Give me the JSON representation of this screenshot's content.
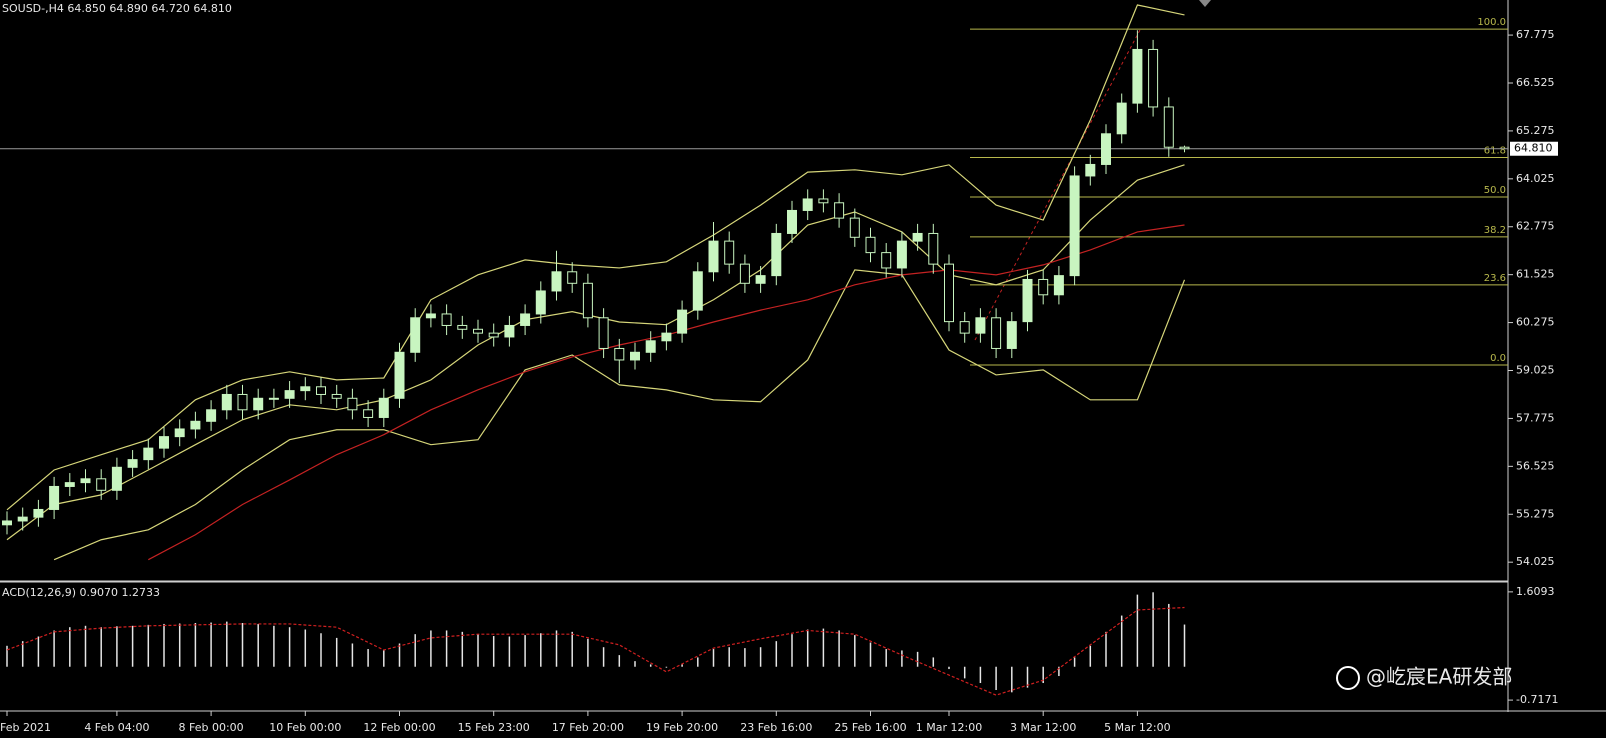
{
  "chart_data": [
    {
      "type": "candlestick",
      "title": "SOUSD-,H4  64.850 64.890 64.720 64.810",
      "categories": [
        "Feb 2021",
        null,
        null,
        null,
        null,
        null,
        null,
        "4 Feb 04:00",
        null,
        null,
        null,
        null,
        null,
        "8 Feb 00:00",
        null,
        null,
        null,
        null,
        null,
        "10 Feb 00:00",
        null,
        null,
        null,
        null,
        null,
        "12 Feb 00:00",
        null,
        null,
        null,
        null,
        null,
        "15 Feb 23:00",
        null,
        null,
        null,
        null,
        null,
        "17 Feb 20:00",
        null,
        null,
        null,
        null,
        null,
        "19 Feb 20:00",
        null,
        null,
        null,
        null,
        null,
        "23 Feb 16:00",
        null,
        null,
        null,
        null,
        null,
        "25 Feb 16:00",
        null,
        null,
        null,
        null,
        "1 Mar 12:00",
        null,
        null,
        null,
        null,
        null,
        "3 Mar 12:00",
        null,
        null,
        null,
        null,
        null,
        "5 Mar 12:00",
        null,
        null,
        null
      ],
      "open": [
        55.0,
        55.1,
        55.2,
        55.4,
        56.0,
        56.1,
        56.2,
        55.9,
        56.5,
        56.7,
        57.0,
        57.3,
        57.5,
        57.7,
        58.0,
        58.4,
        58.0,
        58.3,
        58.3,
        58.5,
        58.6,
        58.4,
        58.3,
        58.0,
        57.8,
        58.3,
        59.5,
        60.4,
        60.5,
        60.2,
        60.1,
        60.0,
        59.9,
        60.2,
        60.5,
        61.1,
        61.6,
        61.3,
        60.4,
        59.6,
        59.3,
        59.5,
        59.8,
        60.0,
        60.6,
        61.6,
        62.4,
        61.8,
        61.3,
        61.5,
        62.6,
        63.2,
        63.5,
        63.4,
        63.0,
        62.5,
        62.1,
        61.7,
        62.4,
        62.6,
        61.8,
        60.3,
        60.0,
        60.4,
        59.6,
        60.3,
        61.4,
        61.0,
        61.5,
        64.1,
        64.4,
        65.2,
        66.0,
        67.4,
        65.9,
        64.85
      ],
      "high": [
        55.35,
        55.45,
        55.65,
        56.25,
        56.35,
        56.45,
        56.45,
        56.75,
        56.95,
        57.25,
        57.55,
        57.75,
        57.95,
        58.25,
        58.65,
        58.65,
        58.55,
        58.55,
        58.75,
        58.85,
        58.85,
        58.65,
        58.55,
        58.25,
        58.55,
        59.75,
        60.65,
        60.75,
        60.75,
        60.45,
        60.35,
        60.25,
        60.45,
        60.75,
        61.35,
        62.15,
        61.85,
        61.55,
        60.65,
        59.85,
        59.75,
        60.05,
        60.25,
        60.85,
        61.85,
        62.9,
        62.65,
        62.05,
        61.75,
        62.85,
        63.45,
        63.75,
        63.75,
        63.65,
        63.25,
        62.75,
        62.35,
        62.65,
        62.85,
        62.85,
        62.05,
        60.55,
        60.65,
        60.65,
        60.55,
        61.65,
        61.65,
        61.75,
        64.35,
        64.65,
        65.45,
        66.25,
        67.9,
        67.65,
        66.15,
        64.89
      ],
      "low": [
        54.75,
        54.85,
        54.95,
        55.15,
        55.75,
        55.85,
        55.65,
        55.65,
        56.25,
        56.45,
        56.75,
        57.05,
        57.25,
        57.45,
        57.75,
        57.75,
        57.75,
        58.05,
        58.05,
        58.25,
        58.15,
        58.05,
        57.75,
        57.55,
        57.55,
        58.05,
        59.25,
        60.15,
        59.95,
        59.85,
        59.75,
        59.65,
        59.65,
        59.95,
        60.25,
        60.85,
        61.05,
        60.15,
        59.35,
        58.7,
        59.05,
        59.25,
        59.55,
        59.75,
        60.35,
        61.35,
        61.55,
        61.05,
        61.05,
        61.25,
        62.35,
        62.95,
        63.15,
        62.75,
        62.25,
        61.85,
        61.45,
        61.45,
        62.15,
        61.55,
        60.05,
        59.75,
        59.75,
        59.35,
        59.35,
        60.05,
        60.75,
        60.75,
        61.25,
        63.85,
        64.15,
        64.95,
        65.75,
        65.65,
        64.6,
        64.72
      ],
      "close": [
        55.1,
        55.2,
        55.4,
        56.0,
        56.1,
        56.2,
        55.9,
        56.5,
        56.7,
        57.0,
        57.3,
        57.5,
        57.7,
        58.0,
        58.4,
        58.0,
        58.3,
        58.3,
        58.5,
        58.6,
        58.4,
        58.3,
        58.0,
        57.8,
        58.3,
        59.5,
        60.4,
        60.5,
        60.2,
        60.1,
        60.0,
        59.9,
        60.2,
        60.5,
        61.1,
        61.6,
        61.3,
        60.4,
        59.6,
        59.3,
        59.5,
        59.8,
        60.0,
        60.6,
        61.6,
        62.4,
        61.8,
        61.3,
        61.5,
        62.6,
        63.2,
        63.5,
        63.4,
        63.0,
        62.5,
        62.1,
        61.7,
        62.4,
        62.6,
        61.8,
        60.3,
        60.0,
        60.4,
        59.6,
        60.3,
        61.4,
        61.0,
        61.5,
        64.1,
        64.4,
        65.2,
        66.0,
        67.4,
        65.9,
        64.85,
        64.81
      ],
      "up_color": "#c8f5c0",
      "down_color": "#000000",
      "series": [
        {
          "color": "#d6d67a",
          "x": [
            0,
            3,
            6,
            9,
            12,
            15,
            18,
            21,
            24,
            27,
            30,
            33,
            36,
            39,
            42,
            45,
            48,
            51,
            54,
            57,
            60,
            63,
            66,
            69,
            72,
            75
          ],
          "values": [
            55.39,
            56.43,
            56.83,
            57.22,
            58.26,
            58.78,
            58.99,
            58.78,
            58.83,
            60.87,
            61.52,
            61.91,
            61.78,
            61.7,
            61.86,
            62.56,
            63.34,
            64.2,
            64.26,
            64.13,
            64.39,
            63.34,
            62.95,
            65.56,
            68.56,
            68.3
          ]
        },
        {
          "color": "#d6d67a",
          "x": [
            0,
            3,
            6,
            9,
            12,
            15,
            18,
            21,
            24,
            27,
            30,
            33,
            36,
            39,
            42,
            45,
            48,
            51,
            54,
            57,
            60,
            63,
            66,
            69,
            72,
            75
          ],
          "values": [
            54.61,
            55.53,
            55.78,
            56.43,
            57.09,
            57.74,
            58.13,
            58.0,
            58.26,
            58.78,
            59.69,
            60.35,
            60.56,
            60.29,
            60.22,
            60.87,
            61.65,
            62.82,
            63.16,
            62.64,
            61.52,
            61.26,
            61.65,
            62.95,
            63.99,
            64.39
          ]
        },
        {
          "color": "#d6d67a",
          "x": [
            0,
            3,
            6,
            9,
            12,
            15,
            18,
            21,
            24,
            27,
            30,
            33,
            36,
            39,
            42,
            45,
            48,
            51,
            54,
            57,
            60,
            63,
            66,
            69,
            72,
            75
          ],
          "values": [
            null,
            54.09,
            54.61,
            54.87,
            55.53,
            56.43,
            57.22,
            57.48,
            57.48,
            57.09,
            57.22,
            59.04,
            59.43,
            58.65,
            58.52,
            58.26,
            58.21,
            59.3,
            61.65,
            61.52,
            59.56,
            58.91,
            59.04,
            58.26,
            58.26,
            61.39
          ]
        },
        {
          "color": "#c42222",
          "x": [
            0,
            3,
            6,
            9,
            12,
            15,
            18,
            21,
            24,
            27,
            30,
            33,
            36,
            39,
            42,
            45,
            48,
            51,
            54,
            57,
            60,
            63,
            66,
            69,
            72,
            75
          ],
          "values": [
            null,
            null,
            null,
            54.09,
            54.74,
            55.53,
            56.17,
            56.83,
            57.35,
            58.0,
            58.52,
            58.99,
            59.38,
            59.69,
            59.95,
            60.29,
            60.6,
            60.87,
            61.26,
            61.52,
            61.65,
            61.52,
            61.78,
            62.17,
            62.64,
            62.82
          ]
        }
      ],
      "fibonacci": {
        "color": "#b8b84c",
        "levels": [
          {
            "label": "100.0",
            "price": 67.93
          },
          {
            "label": "61.8",
            "price": 64.58
          },
          {
            "label": "50.0",
            "price": 63.55
          },
          {
            "label": "38.2",
            "price": 62.51
          },
          {
            "label": "23.6",
            "price": 61.26
          },
          {
            "label": "0.0",
            "price": 59.17
          }
        ]
      },
      "current_price": {
        "value": 64.81,
        "label": "64.810"
      },
      "ylim": [
        53.56,
        68.69
      ],
      "yticks": [
        67.775,
        66.525,
        65.275,
        64.025,
        62.775,
        61.525,
        60.275,
        59.025,
        57.775,
        56.525,
        55.275,
        54.025
      ]
    },
    {
      "type": "macd",
      "title": "ACD(12,26,9) 0.9070 1.2733",
      "color": "#e6e6e6",
      "values": [
        0.45,
        0.55,
        0.65,
        0.78,
        0.85,
        0.88,
        0.85,
        0.87,
        0.88,
        0.9,
        0.92,
        0.93,
        0.94,
        0.95,
        0.97,
        0.94,
        0.92,
        0.88,
        0.85,
        0.8,
        0.72,
        0.62,
        0.5,
        0.38,
        0.35,
        0.5,
        0.7,
        0.78,
        0.78,
        0.75,
        0.7,
        0.66,
        0.65,
        0.68,
        0.72,
        0.78,
        0.75,
        0.6,
        0.42,
        0.25,
        0.12,
        0.05,
        -0.02,
        0.05,
        0.2,
        0.38,
        0.42,
        0.4,
        0.42,
        0.55,
        0.7,
        0.8,
        0.82,
        0.78,
        0.68,
        0.52,
        0.38,
        0.35,
        0.32,
        0.2,
        -0.05,
        -0.25,
        -0.35,
        -0.5,
        -0.55,
        -0.45,
        -0.35,
        -0.2,
        0.2,
        0.45,
        0.75,
        1.1,
        1.55,
        1.6,
        1.35,
        0.907
      ],
      "series": [
        {
          "color": "#d02020",
          "x": [
            0,
            3,
            6,
            9,
            12,
            15,
            18,
            21,
            24,
            27,
            30,
            33,
            36,
            39,
            42,
            45,
            48,
            51,
            54,
            57,
            60,
            63,
            66,
            69,
            72,
            75
          ],
          "values": [
            0.36,
            0.75,
            0.83,
            0.88,
            0.9,
            0.92,
            0.92,
            0.85,
            0.36,
            0.62,
            0.7,
            0.7,
            0.7,
            0.47,
            -0.11,
            0.4,
            0.6,
            0.78,
            0.7,
            0.25,
            -0.18,
            -0.61,
            -0.29,
            0.47,
            1.22,
            1.2733
          ]
        }
      ],
      "ylim": [
        -0.93,
        1.8
      ],
      "yticks": [
        1.6093,
        -0.7171
      ]
    }
  ],
  "watermark": "@屹宸EA研发部"
}
